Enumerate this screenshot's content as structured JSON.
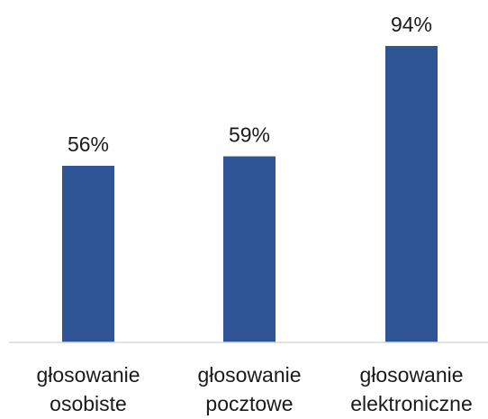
{
  "chart_data": {
    "type": "bar",
    "title": "",
    "xlabel": "",
    "ylabel": "",
    "categories": [
      [
        "głosowanie",
        "osobiste"
      ],
      [
        "głosowanie",
        "pocztowe"
      ],
      [
        "głosowanie",
        "elektroniczne"
      ]
    ],
    "values": [
      56,
      59,
      94
    ],
    "data_labels": [
      "56%",
      "59%",
      "94%"
    ],
    "unit": "%",
    "ylim": [
      0,
      100
    ],
    "grid": false,
    "legend": "none",
    "bar_color": "#2f5597",
    "axis_color": "#d9d9d9"
  }
}
